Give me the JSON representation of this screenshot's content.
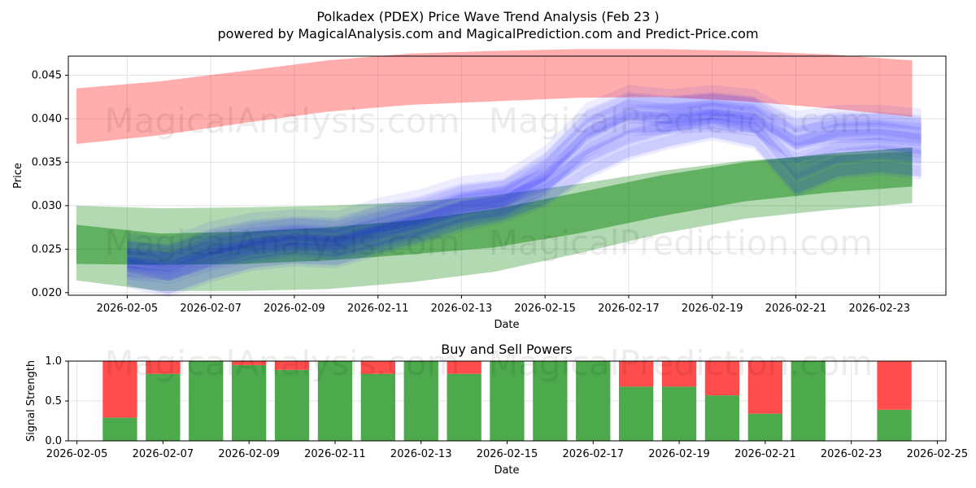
{
  "header": {
    "title": "Polkadex (PDEX) Price Wave Trend Analysis (Feb 23 )",
    "subtitle": "powered by MagicalAnalysis.com and MagicalPrediction.com and Predict-Price.com"
  },
  "watermarks": [
    "MagicalAnalysis.com",
    "MagicalPrediction.com"
  ],
  "colors": {
    "red_band": "#ff0000",
    "green_band": "#008000",
    "blue_wave": "#0000ff",
    "buy_bar": "#4caa4c",
    "sell_bar": "#ff4c4c",
    "grid": "#e3e3e3"
  },
  "chart_data": [
    {
      "type": "area",
      "title": "",
      "xlabel": "Date",
      "ylabel": "Price",
      "xlim": [
        "2026-02-04",
        "2026-02-25"
      ],
      "ylim": [
        0.0197,
        0.0472
      ],
      "x_ticks": [
        "2026-02-05",
        "2026-02-07",
        "2026-02-09",
        "2026-02-11",
        "2026-02-13",
        "2026-02-15",
        "2026-02-17",
        "2026-02-19",
        "2026-02-21",
        "2026-02-23"
      ],
      "y_ticks": [
        "0.020",
        "0.025",
        "0.030",
        "0.035",
        "0.040",
        "0.045"
      ],
      "grid": true,
      "bands": [
        {
          "name": "red-upper-band",
          "color": "#ff0000",
          "x": [
            "2026-02-04",
            "2026-02-06",
            "2026-02-08",
            "2026-02-10",
            "2026-02-12",
            "2026-02-14",
            "2026-02-16",
            "2026-02-18",
            "2026-02-20",
            "2026-02-22",
            "2026-02-24"
          ],
          "upper": [
            0.0435,
            0.0443,
            0.0455,
            0.0467,
            0.0475,
            0.0478,
            0.048,
            0.048,
            0.0478,
            0.0474,
            0.0467
          ],
          "lower": [
            0.0371,
            0.0381,
            0.0395,
            0.0408,
            0.0416,
            0.042,
            0.0424,
            0.0425,
            0.042,
            0.0412,
            0.0402
          ]
        },
        {
          "name": "green-wide-band",
          "color": "#008000",
          "x": [
            "2026-02-04",
            "2026-02-06",
            "2026-02-08",
            "2026-02-10",
            "2026-02-12",
            "2026-02-14",
            "2026-02-16",
            "2026-02-18",
            "2026-02-20",
            "2026-02-22",
            "2026-02-24"
          ],
          "upper": [
            0.03,
            0.0297,
            0.0298,
            0.03,
            0.0304,
            0.0312,
            0.0325,
            0.034,
            0.0352,
            0.0358,
            0.0362
          ],
          "lower": [
            0.0214,
            0.0202,
            0.0202,
            0.0204,
            0.0212,
            0.0224,
            0.0245,
            0.0268,
            0.0285,
            0.0295,
            0.0303
          ]
        },
        {
          "name": "green-narrow-band",
          "color": "#008000",
          "x": [
            "2026-02-04",
            "2026-02-06",
            "2026-02-08",
            "2026-02-10",
            "2026-02-12",
            "2026-02-14",
            "2026-02-16",
            "2026-02-18",
            "2026-02-20",
            "2026-02-22",
            "2026-02-24"
          ],
          "upper": [
            0.0278,
            0.0268,
            0.027,
            0.0275,
            0.0283,
            0.0296,
            0.0315,
            0.0335,
            0.035,
            0.036,
            0.0367
          ],
          "lower": [
            0.0233,
            0.0232,
            0.0233,
            0.0237,
            0.0244,
            0.0252,
            0.0268,
            0.0288,
            0.0305,
            0.0315,
            0.0322
          ]
        }
      ],
      "series": [
        {
          "name": "blue-wave-center",
          "color": "#0000ff",
          "x": [
            "2026-02-05",
            "2026-02-06",
            "2026-02-07",
            "2026-02-08",
            "2026-02-09",
            "2026-02-10",
            "2026-02-11",
            "2026-02-12",
            "2026-02-13",
            "2026-02-14",
            "2026-02-15",
            "2026-02-16",
            "2026-02-17",
            "2026-02-18",
            "2026-02-19",
            "2026-02-20",
            "2026-02-21",
            "2026-02-22",
            "2026-02-23",
            "2026-02-24"
          ],
          "values": [
            0.0235,
            0.023,
            0.0245,
            0.0255,
            0.0262,
            0.0258,
            0.027,
            0.0282,
            0.0298,
            0.0305,
            0.033,
            0.0375,
            0.04,
            0.0402,
            0.0405,
            0.04,
            0.0365,
            0.038,
            0.0382,
            0.0375
          ]
        },
        {
          "name": "blue-wave-lower",
          "color": "#0000ff",
          "x": [
            "2026-02-05",
            "2026-02-06",
            "2026-02-07",
            "2026-02-08",
            "2026-02-09",
            "2026-02-10",
            "2026-02-11",
            "2026-02-12",
            "2026-02-13",
            "2026-02-14",
            "2026-02-15",
            "2026-02-16",
            "2026-02-17",
            "2026-02-18",
            "2026-02-19",
            "2026-02-20",
            "2026-02-21",
            "2026-02-22",
            "2026-02-23",
            "2026-02-24"
          ],
          "values": [
            0.0225,
            0.0215,
            0.0232,
            0.0245,
            0.025,
            0.0248,
            0.0262,
            0.0275,
            0.029,
            0.03,
            0.0318,
            0.035,
            0.0372,
            0.0385,
            0.0395,
            0.0385,
            0.033,
            0.035,
            0.0355,
            0.035
          ]
        },
        {
          "name": "blue-wave-upper",
          "color": "#0000ff",
          "x": [
            "2026-02-05",
            "2026-02-06",
            "2026-02-07",
            "2026-02-08",
            "2026-02-09",
            "2026-02-10",
            "2026-02-11",
            "2026-02-12",
            "2026-02-13",
            "2026-02-14",
            "2026-02-15",
            "2026-02-16",
            "2026-02-17",
            "2026-02-18",
            "2026-02-19",
            "2026-02-20",
            "2026-02-21",
            "2026-02-22",
            "2026-02-23",
            "2026-02-24"
          ],
          "values": [
            0.0245,
            0.024,
            0.0258,
            0.0268,
            0.0272,
            0.027,
            0.0285,
            0.0295,
            0.031,
            0.0315,
            0.0345,
            0.0395,
            0.0415,
            0.041,
            0.0415,
            0.041,
            0.0385,
            0.0392,
            0.0392,
            0.0388
          ]
        }
      ]
    },
    {
      "type": "bar",
      "title": "Buy and Sell Powers",
      "xlabel": "Date",
      "ylabel": "Signal Strength",
      "xlim": [
        "2026-02-04.8",
        "2026-02-25.2"
      ],
      "ylim": [
        0.0,
        1.0
      ],
      "x_ticks": [
        "2026-02-05",
        "2026-02-07",
        "2026-02-09",
        "2026-02-11",
        "2026-02-13",
        "2026-02-15",
        "2026-02-17",
        "2026-02-19",
        "2026-02-21",
        "2026-02-23",
        "2026-02-25"
      ],
      "y_ticks": [
        "0.0",
        "0.5",
        "1.0"
      ],
      "grid": true,
      "categories": [
        "2026-02-06",
        "2026-02-07",
        "2026-02-08",
        "2026-02-09",
        "2026-02-10",
        "2026-02-11",
        "2026-02-12",
        "2026-02-13",
        "2026-02-14",
        "2026-02-15",
        "2026-02-16",
        "2026-02-17",
        "2026-02-18",
        "2026-02-19",
        "2026-02-20",
        "2026-02-21",
        "2026-02-22",
        "2026-02-23",
        "2026-02-24"
      ],
      "series": [
        {
          "name": "Buy",
          "color": "#4caa4c",
          "values": [
            0.29,
            0.84,
            1.0,
            0.95,
            0.89,
            1.0,
            0.84,
            1.0,
            0.84,
            1.0,
            1.0,
            1.0,
            0.68,
            0.68,
            0.57,
            0.34,
            1.0,
            0.0,
            0.39
          ]
        },
        {
          "name": "Sell",
          "color": "#ff4c4c",
          "values": [
            0.71,
            0.16,
            0.0,
            0.05,
            0.11,
            0.0,
            0.16,
            0.0,
            0.16,
            0.0,
            0.0,
            0.0,
            0.32,
            0.32,
            0.43,
            0.66,
            0.0,
            0.0,
            0.61
          ]
        }
      ]
    }
  ]
}
